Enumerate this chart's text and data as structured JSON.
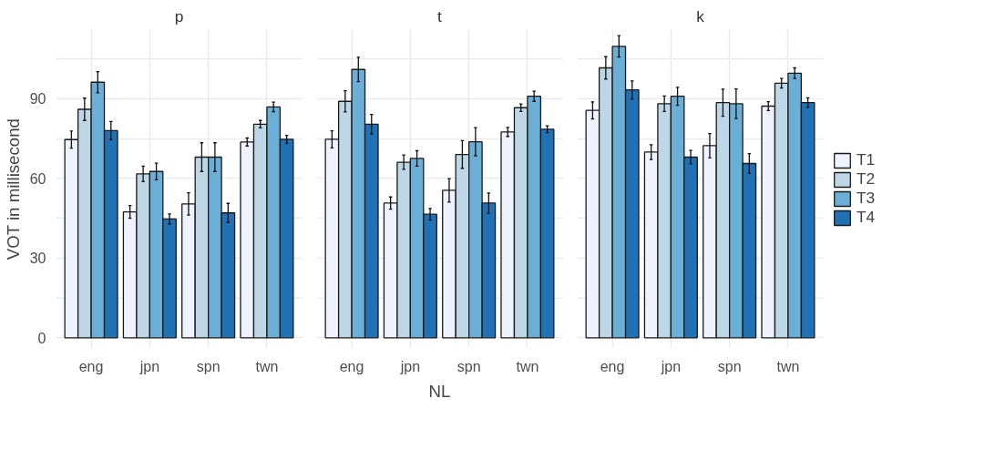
{
  "chart_data": [
    {
      "type": "bar",
      "title": "p",
      "ylabel": "VOT in millisecond",
      "legend": "right",
      "categories": [
        "eng",
        "jpn",
        "spn",
        "twn"
      ],
      "ylim": [
        -4,
        116
      ],
      "yticks": [
        0,
        {
          "value": 15,
          "label": null
        },
        30,
        {
          "value": 45,
          "label": null
        },
        60,
        {
          "value": 75,
          "label": null
        },
        90,
        {
          "value": 105,
          "label": null
        }
      ],
      "grid": true,
      "tick_labels": true,
      "series": [
        {
          "name": "T1",
          "color": "#eff3ff",
          "values": [
            74.6,
            47.4,
            50.4,
            73.7
          ],
          "errors": [
            3.2,
            2.4,
            4.2,
            1.5
          ]
        },
        {
          "name": "T2",
          "color": "#bdd7e7",
          "values": [
            86.0,
            61.7,
            68.0,
            80.4
          ],
          "errors": [
            4.2,
            2.9,
            5.4,
            1.4
          ]
        },
        {
          "name": "T3",
          "color": "#6baed6",
          "values": [
            96.2,
            62.6,
            68.0,
            86.9
          ],
          "errors": [
            4.0,
            3.1,
            5.4,
            1.8
          ]
        },
        {
          "name": "T4",
          "color": "#2171b5",
          "values": [
            78.0,
            44.7,
            47.0,
            74.7
          ],
          "errors": [
            3.4,
            1.9,
            3.6,
            1.5
          ]
        }
      ]
    },
    {
      "type": "bar",
      "title": "t",
      "xlabel": "NL",
      "categories": [
        "eng",
        "jpn",
        "spn",
        "twn"
      ],
      "ylim": [
        -4,
        116
      ],
      "yticks": [
        0,
        {
          "value": 15,
          "label": null
        },
        30,
        {
          "value": 45,
          "label": null
        },
        60,
        {
          "value": 75,
          "label": null
        },
        90,
        {
          "value": 105,
          "label": null
        }
      ],
      "grid": true,
      "tick_labels": "x",
      "series": [
        {
          "color": "#eff3ff",
          "values": [
            74.7,
            50.7,
            55.5,
            77.5
          ],
          "errors": [
            3.2,
            2.3,
            4.4,
            1.7
          ]
        },
        {
          "color": "#bdd7e7",
          "values": [
            89.0,
            66.1,
            69.0,
            86.6
          ],
          "errors": [
            4.0,
            2.7,
            5.2,
            1.4
          ]
        },
        {
          "color": "#6baed6",
          "values": [
            101.0,
            67.5,
            73.8,
            90.9
          ],
          "errors": [
            4.6,
            2.9,
            5.3,
            1.9
          ]
        },
        {
          "color": "#2171b5",
          "values": [
            80.4,
            46.5,
            50.7,
            78.5
          ],
          "errors": [
            3.7,
            2.2,
            3.8,
            1.3
          ]
        }
      ]
    },
    {
      "type": "bar",
      "title": "k",
      "categories": [
        "eng",
        "jpn",
        "spn",
        "twn"
      ],
      "ylim": [
        -4,
        116
      ],
      "yticks": [
        0,
        {
          "value": 15,
          "label": null
        },
        30,
        {
          "value": 45,
          "label": null
        },
        60,
        {
          "value": 75,
          "label": null
        },
        90,
        {
          "value": 105,
          "label": null
        }
      ],
      "grid": true,
      "tick_labels": "x",
      "series": [
        {
          "color": "#eff3ff",
          "values": [
            85.6,
            69.9,
            72.3,
            87.2
          ],
          "errors": [
            3.2,
            2.8,
            4.6,
            1.7
          ]
        },
        {
          "color": "#bdd7e7",
          "values": [
            101.6,
            88.1,
            88.5,
            95.8
          ],
          "errors": [
            4.2,
            2.9,
            5.1,
            1.8
          ]
        },
        {
          "color": "#6baed6",
          "values": [
            109.7,
            90.9,
            88.1,
            99.6
          ],
          "errors": [
            4.0,
            3.4,
            5.6,
            2.0
          ]
        },
        {
          "color": "#2171b5",
          "values": [
            93.3,
            68.0,
            65.6,
            88.5
          ],
          "errors": [
            3.4,
            2.5,
            3.7,
            1.8
          ]
        }
      ]
    }
  ]
}
